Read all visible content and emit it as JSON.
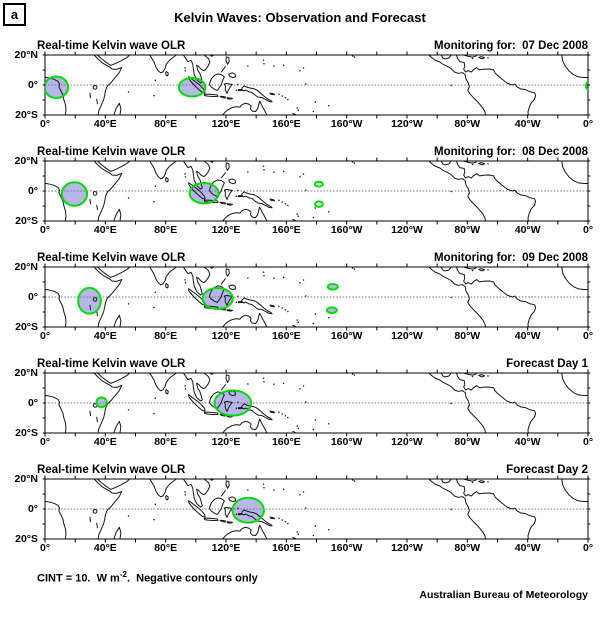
{
  "figure_label": "a",
  "title": "Kelvin Waves: Observation and Forecast",
  "axes": {
    "x_tick_labels": [
      "0°",
      "40°E",
      "80°E",
      "120°E",
      "160°E",
      "160°W",
      "120°W",
      "80°W",
      "40°W",
      "0°"
    ],
    "y_tick_labels": [
      "20°N",
      "0°",
      "20°S"
    ],
    "x_tick_interval_deg": 20,
    "y_tick_interval_deg": 10
  },
  "colors": {
    "anomaly_fill": "#b4b7e8",
    "contour": "#00dd00",
    "equator": "#7d7d7d",
    "coast": "#161616",
    "frame": "#000000"
  },
  "footer": {
    "cint_prefix": "CINT = 10.  W m",
    "cint_sup": "-2",
    "cint_suffix": ".  Negative contours only",
    "credit": "Australian Bureau of Meteorology"
  },
  "chart_data": {
    "type": "heatmap",
    "subtype": "map-contour-panels",
    "title": "Kelvin Waves: Observation and Forecast",
    "variable": "Real-time Kelvin wave OLR",
    "units": "W m-2",
    "contour_interval": 10,
    "contours_shown": "negative only",
    "lon_range_deg_east": [
      0,
      360
    ],
    "lat_range_deg": [
      -20,
      20
    ],
    "panels": [
      {
        "left_label": "Real-time Kelvin wave OLR",
        "right_label": "Monitoring for:  07 Dec 2008",
        "negative_olr_regions": [
          {
            "lon": 7.5,
            "lat": -1.5,
            "lon_halfwidth": 7.8,
            "lat_halfwidth": 7.2,
            "filled": true
          },
          {
            "lon": 97.5,
            "lat": -1.5,
            "lon_halfwidth": 8.8,
            "lat_halfwidth": 6.2,
            "filled": true
          },
          {
            "lon": 359.8,
            "lat": -0.5,
            "lon_halfwidth": 1.3,
            "lat_halfwidth": 2.2,
            "filled": true
          }
        ]
      },
      {
        "left_label": "Real-time Kelvin wave OLR",
        "right_label": "Monitoring for:  08 Dec 2008",
        "negative_olr_regions": [
          {
            "lon": 19.5,
            "lat": -2.0,
            "lon_halfwidth": 8.4,
            "lat_halfwidth": 7.8,
            "filled": true
          },
          {
            "lon": 105.5,
            "lat": -1.5,
            "lon_halfwidth": 9.6,
            "lat_halfwidth": 6.8,
            "filled": true
          },
          {
            "lon": 181.6,
            "lat": 4.6,
            "lon_halfwidth": 2.6,
            "lat_halfwidth": 1.6,
            "filled": false
          },
          {
            "lon": 181.6,
            "lat": -8.8,
            "lon_halfwidth": 2.6,
            "lat_halfwidth": 1.8,
            "filled": false
          }
        ]
      },
      {
        "left_label": "Real-time Kelvin wave OLR",
        "right_label": "Monitoring for:  09 Dec 2008",
        "negative_olr_regions": [
          {
            "lon": 29.5,
            "lat": -2.5,
            "lon_halfwidth": 7.5,
            "lat_halfwidth": 8.6,
            "filled": true
          },
          {
            "lon": 114.5,
            "lat": -1.0,
            "lon_halfwidth": 10.0,
            "lat_halfwidth": 7.0,
            "filled": true
          },
          {
            "lon": 190.8,
            "lat": 6.8,
            "lon_halfwidth": 3.3,
            "lat_halfwidth": 1.9,
            "filled": true
          },
          {
            "lon": 190.2,
            "lat": -8.8,
            "lon_halfwidth": 3.3,
            "lat_halfwidth": 1.9,
            "filled": true
          }
        ]
      },
      {
        "left_label": "Real-time Kelvin wave OLR",
        "right_label": "Forecast Day 1",
        "negative_olr_regions": [
          {
            "lon": 37.5,
            "lat": 0.5,
            "lon_halfwidth": 3.4,
            "lat_halfwidth": 3.2,
            "filled": true
          },
          {
            "lon": 124.5,
            "lat": 0.0,
            "lon_halfwidth": 12.2,
            "lat_halfwidth": 8.4,
            "filled": true
          }
        ]
      },
      {
        "left_label": "Real-time Kelvin wave OLR",
        "right_label": "Forecast Day 2",
        "negative_olr_regions": [
          {
            "lon": 134.7,
            "lat": -0.8,
            "lon_halfwidth": 10.4,
            "lat_halfwidth": 8.3,
            "filled": true
          }
        ]
      }
    ]
  }
}
